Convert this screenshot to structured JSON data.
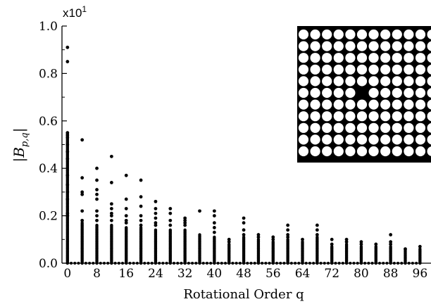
{
  "chart_data": {
    "type": "scatter",
    "title": "",
    "xlabel": "Rotational Order q",
    "ylabel": "|B",
    "ylabel_sub": "p,q",
    "ylabel_close": "|",
    "multiplier_base": "x10",
    "multiplier_exp": "1",
    "xlim": [
      -1.5,
      99
    ],
    "ylim": [
      0,
      1.0
    ],
    "x_ticks": [
      0,
      8,
      16,
      24,
      32,
      40,
      48,
      56,
      64,
      72,
      80,
      88,
      96
    ],
    "x_tick_labels": [
      "0",
      "8",
      "16",
      "24",
      "32",
      "40",
      "48",
      "56",
      "64",
      "72",
      "80",
      "88",
      "96"
    ],
    "x_minor_ticks": [
      4,
      12,
      20,
      28,
      36,
      44,
      52,
      60,
      68,
      76,
      84,
      92
    ],
    "y_ticks": [
      0.0,
      0.2,
      0.4,
      0.6,
      0.8,
      1.0
    ],
    "y_tick_labels": [
      "0.0",
      "0.2",
      "0.4",
      "0.6",
      "0.8",
      "1.0"
    ],
    "grid": false,
    "legend": "none",
    "marker_color": "#000000",
    "columns": [
      {
        "q": 0,
        "max": 0.55,
        "outliers": [
          0.91,
          0.85,
          0.55,
          0.54,
          0.53,
          0.5,
          0.47,
          0.44,
          0.37,
          0.33,
          0.3,
          0.27,
          0.21,
          0.2
        ]
      },
      {
        "q": 4,
        "max": 0.17,
        "outliers": [
          0.52,
          0.36,
          0.3,
          0.29,
          0.22,
          0.18
        ]
      },
      {
        "q": 8,
        "max": 0.16,
        "outliers": [
          0.4,
          0.35,
          0.31,
          0.29,
          0.27,
          0.22,
          0.2,
          0.18
        ]
      },
      {
        "q": 12,
        "max": 0.16,
        "outliers": [
          0.45,
          0.34,
          0.25,
          0.23,
          0.21,
          0.2,
          0.18
        ]
      },
      {
        "q": 16,
        "max": 0.15,
        "outliers": [
          0.37,
          0.27,
          0.23,
          0.2,
          0.18,
          0.17
        ]
      },
      {
        "q": 20,
        "max": 0.15,
        "outliers": [
          0.35,
          0.28,
          0.24,
          0.2,
          0.18,
          0.16
        ]
      },
      {
        "q": 24,
        "max": 0.14,
        "outliers": [
          0.26,
          0.23,
          0.21,
          0.19,
          0.17,
          0.16
        ]
      },
      {
        "q": 28,
        "max": 0.14,
        "outliers": [
          0.23,
          0.21,
          0.18,
          0.16
        ]
      },
      {
        "q": 32,
        "max": 0.14,
        "outliers": [
          0.19,
          0.18,
          0.17,
          0.16
        ]
      },
      {
        "q": 36,
        "max": 0.12,
        "outliers": [
          0.22
        ]
      },
      {
        "q": 40,
        "max": 0.11,
        "outliers": [
          0.22,
          0.2,
          0.17,
          0.15,
          0.13
        ]
      },
      {
        "q": 44,
        "max": 0.08,
        "outliers": [
          0.1,
          0.09
        ]
      },
      {
        "q": 48,
        "max": 0.11,
        "outliers": [
          0.19,
          0.17,
          0.14,
          0.12
        ]
      },
      {
        "q": 52,
        "max": 0.1,
        "outliers": [
          0.12,
          0.11
        ]
      },
      {
        "q": 56,
        "max": 0.09,
        "outliers": [
          0.11,
          0.1
        ]
      },
      {
        "q": 60,
        "max": 0.1,
        "outliers": [
          0.16,
          0.14,
          0.12,
          0.11
        ]
      },
      {
        "q": 64,
        "max": 0.09,
        "outliers": [
          0.1
        ]
      },
      {
        "q": 68,
        "max": 0.11,
        "outliers": [
          0.16,
          0.14,
          0.12
        ]
      },
      {
        "q": 72,
        "max": 0.07,
        "outliers": [
          0.1,
          0.08
        ]
      },
      {
        "q": 76,
        "max": 0.08,
        "outliers": [
          0.1,
          0.09
        ]
      },
      {
        "q": 80,
        "max": 0.07,
        "outliers": [
          0.09,
          0.08
        ]
      },
      {
        "q": 84,
        "max": 0.07,
        "outliers": [
          0.08
        ]
      },
      {
        "q": 88,
        "max": 0.07,
        "outliers": [
          0.12,
          0.09,
          0.08
        ]
      },
      {
        "q": 92,
        "max": 0.06,
        "outliers": [
          0.06
        ]
      },
      {
        "q": 96,
        "max": 0.06,
        "outliers": [
          0.07
        ]
      }
    ],
    "baseline_y": 0.0,
    "baseline_step": 1
  },
  "inset": {
    "description": "",
    "grid_rows": 11,
    "grid_cols": 11,
    "missing_cell": [
      5,
      5
    ],
    "background_color": "#000000",
    "dot_color": "#ffffff"
  }
}
